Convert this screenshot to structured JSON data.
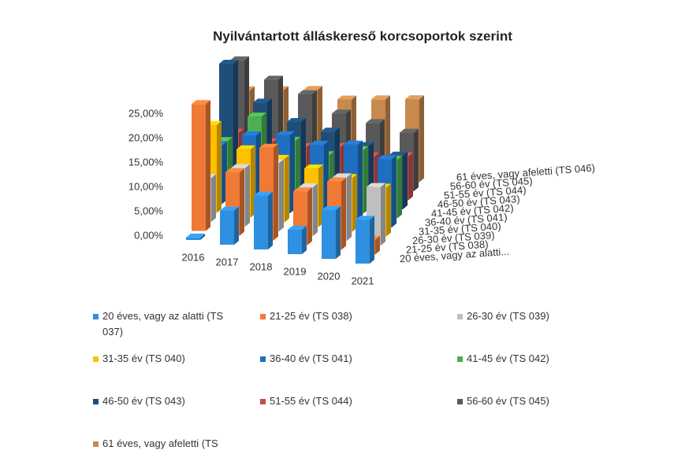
{
  "chart_data": {
    "type": "bar3d",
    "title": "Nyilvántartott álláskereső korcsoportok szerint",
    "categories": [
      "2016",
      "2017",
      "2018",
      "2019",
      "2020",
      "2021"
    ],
    "depth_labels": [
      "20 éves, vagy az alatti...",
      "21-25 év (TS 038)",
      "26-30 év (TS 039)",
      "31-35 év (TS 040)",
      "36-40 év (TS 041)",
      "41-45 év (TS 042)",
      "46-50 év (TS 043)",
      "51-55 év (TS 044)",
      "56-60 év (TS 045)",
      "61 éves, vagy afeletti (TS 046)"
    ],
    "series": [
      {
        "name": "20 éves, vagy az alatti (TS 037)",
        "color": "#2f8fe0",
        "values": [
          0.5,
          7,
          11,
          5,
          10,
          9
        ]
      },
      {
        "name": "21-25 év (TS 038)",
        "color": "#f07a35",
        "values": [
          26,
          13,
          19,
          11,
          14,
          3
        ]
      },
      {
        "name": "26-30 év (TS 039)",
        "color": "#bfbfbf",
        "values": [
          9,
          12,
          14,
          10,
          13,
          12
        ]
      },
      {
        "name": "31-35 év (TS 040)",
        "color": "#ffc000",
        "values": [
          18,
          14,
          13,
          12,
          11,
          10
        ]
      },
      {
        "name": "36-40 év (TS 041)",
        "color": "#1f6fc0",
        "values": [
          12,
          15,
          16,
          15,
          16,
          14
        ]
      },
      {
        "name": "41-45 év (TS 042)",
        "color": "#4caf50",
        "values": [
          11,
          17,
          13,
          11,
          13,
          12
        ]
      },
      {
        "name": "46-50 év (TS 043)",
        "color": "#1f4e79",
        "values": [
          25,
          18,
          15,
          14,
          12,
          11
        ]
      },
      {
        "name": "51-55 év (TS 044)",
        "color": "#c0504d",
        "values": [
          9,
          8,
          8,
          9,
          8,
          9
        ]
      },
      {
        "name": "56-60 év (TS 045)",
        "color": "#595959",
        "values": [
          22,
          19,
          17,
          14,
          13,
          12
        ]
      },
      {
        "name": "61 éves, vagy afeletti (TS 046)",
        "color": "#c8894d",
        "values": [
          14,
          15,
          16,
          15,
          16,
          17
        ]
      }
    ],
    "ylim": [
      0,
      25
    ],
    "yticks": [
      {
        "value": 0,
        "label": "0,00%"
      },
      {
        "value": 5,
        "label": "5,00%"
      },
      {
        "value": 10,
        "label": "10,00%"
      },
      {
        "value": 15,
        "label": "15,00%"
      },
      {
        "value": 20,
        "label": "20,00%"
      },
      {
        "value": 25,
        "label": "25,00%"
      }
    ],
    "grid": false
  }
}
